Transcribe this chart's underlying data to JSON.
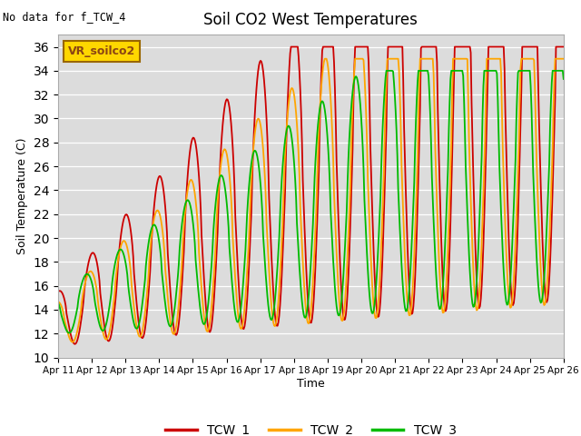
{
  "title": "Soil CO2 West Temperatures",
  "no_data_text": "No data for f_TCW_4",
  "vr_label": "VR_soilco2",
  "ylabel": "Soil Temperature (C)",
  "xlabel": "Time",
  "ylim": [
    10,
    37
  ],
  "yticks": [
    10,
    12,
    14,
    16,
    18,
    20,
    22,
    24,
    26,
    28,
    30,
    32,
    34,
    36
  ],
  "bg_color": "#dcdcdc",
  "line_colors": {
    "TCW_1": "#cc0000",
    "TCW_2": "#ffa500",
    "TCW_3": "#00bb00"
  },
  "line_width": 1.3,
  "xtick_labels": [
    "Apr 11",
    "Apr 12",
    "Apr 13",
    "Apr 14",
    "Apr 15",
    "Apr 16",
    "Apr 17",
    "Apr 18",
    "Apr 19",
    "Apr 20",
    "Apr 21",
    "Apr 22",
    "Apr 23",
    "Apr 24",
    "Apr 25",
    "Apr 26"
  ],
  "n_points": 600
}
